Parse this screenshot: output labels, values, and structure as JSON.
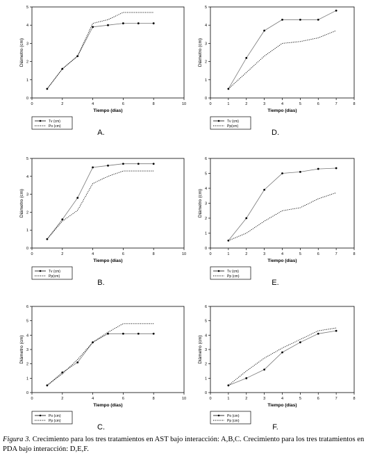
{
  "chart_data": [
    {
      "type": "line",
      "panel_label": "A.",
      "xlabel": "Tiempo (días)",
      "ylabel": "Diámetro (cm)",
      "xlim": [
        0,
        10
      ],
      "ylim": [
        0,
        5
      ],
      "xticks": [
        "0",
        "2",
        "4",
        "6",
        "8",
        "10"
      ],
      "yticks": [
        "0",
        "1",
        "2",
        "3",
        "4",
        "5"
      ],
      "legend_position": "bottom-left-outside",
      "series": [
        {
          "name": "Tv (cm)",
          "style": "solid-markers",
          "color": "#000000",
          "x": [
            1,
            2,
            3,
            4,
            5,
            6,
            7,
            8
          ],
          "y": [
            0.5,
            1.6,
            2.3,
            3.9,
            4.0,
            4.1,
            4.1,
            4.1
          ]
        },
        {
          "name": "Po (cm)",
          "style": "dotted",
          "color": "#000000",
          "x": [
            1,
            2,
            3,
            4,
            5,
            6,
            7,
            8
          ],
          "y": [
            0.5,
            1.6,
            2.3,
            4.1,
            4.3,
            4.7,
            4.7,
            4.7
          ]
        }
      ]
    },
    {
      "type": "line",
      "panel_label": "D.",
      "xlabel": "Tiempo (días)",
      "ylabel": "Diámetro (cm)",
      "xlim": [
        0,
        8
      ],
      "ylim": [
        0,
        5
      ],
      "xticks": [
        "0",
        "1",
        "2",
        "3",
        "4",
        "5",
        "6",
        "7",
        "8"
      ],
      "yticks": [
        "0",
        "1",
        "2",
        "3",
        "4",
        "5"
      ],
      "legend_position": "bottom-left-outside",
      "series": [
        {
          "name": "Tv (cm)",
          "style": "solid-markers",
          "color": "#000000",
          "x": [
            1,
            2,
            3,
            4,
            5,
            6,
            7
          ],
          "y": [
            0.5,
            2.2,
            3.7,
            4.3,
            4.3,
            4.3,
            4.8
          ]
        },
        {
          "name": "Pp(cm)",
          "style": "dotted",
          "color": "#000000",
          "x": [
            1,
            2,
            3,
            4,
            5,
            6,
            7
          ],
          "y": [
            0.5,
            1.4,
            2.3,
            3.0,
            3.1,
            3.3,
            3.7
          ]
        }
      ]
    },
    {
      "type": "line",
      "panel_label": "B.",
      "xlabel": "Tiempo (días)",
      "ylabel": "Diámetro (cm)",
      "xlim": [
        0,
        10
      ],
      "ylim": [
        0,
        5
      ],
      "xticks": [
        "0",
        "2",
        "4",
        "6",
        "8",
        "10"
      ],
      "yticks": [
        "0",
        "1",
        "2",
        "3",
        "4",
        "5"
      ],
      "legend_position": "bottom-left-outside",
      "series": [
        {
          "name": "Tv (cm)",
          "style": "solid-markers",
          "color": "#000000",
          "x": [
            1,
            2,
            3,
            4,
            5,
            6,
            7,
            8
          ],
          "y": [
            0.5,
            1.6,
            2.8,
            4.5,
            4.6,
            4.7,
            4.7,
            4.7
          ]
        },
        {
          "name": "Pp(cm)",
          "style": "dotted",
          "color": "#000000",
          "x": [
            1,
            2,
            3,
            4,
            5,
            6,
            7,
            8
          ],
          "y": [
            0.5,
            1.5,
            2.1,
            3.6,
            4.0,
            4.3,
            4.3,
            4.3
          ]
        }
      ]
    },
    {
      "type": "line",
      "panel_label": "E.",
      "xlabel": "Tiempo (días)",
      "ylabel": "Diámetro (cm)",
      "xlim": [
        0,
        8
      ],
      "ylim": [
        0,
        6
      ],
      "xticks": [
        "0",
        "1",
        "2",
        "3",
        "4",
        "5",
        "6",
        "7",
        "8"
      ],
      "yticks": [
        "0",
        "1",
        "2",
        "3",
        "4",
        "5",
        "6"
      ],
      "legend_position": "bottom-left-outside",
      "series": [
        {
          "name": "Tv (cm)",
          "style": "solid-markers",
          "color": "#000000",
          "x": [
            1,
            2,
            3,
            4,
            5,
            6,
            7
          ],
          "y": [
            0.5,
            2.0,
            3.9,
            5.0,
            5.1,
            5.3,
            5.35
          ]
        },
        {
          "name": "Pp (cm)",
          "style": "dotted",
          "color": "#000000",
          "x": [
            1,
            2,
            3,
            4,
            5,
            6,
            7
          ],
          "y": [
            0.5,
            1.0,
            1.8,
            2.5,
            2.7,
            3.3,
            3.7
          ]
        }
      ]
    },
    {
      "type": "line",
      "panel_label": "C.",
      "xlabel": "Tiempo (días)",
      "ylabel": "Diámetro (cm)",
      "xlim": [
        0,
        10
      ],
      "ylim": [
        0,
        6
      ],
      "xticks": [
        "0",
        "2",
        "4",
        "6",
        "8",
        "10"
      ],
      "yticks": [
        "0",
        "1",
        "2",
        "3",
        "4",
        "5",
        "6"
      ],
      "legend_position": "bottom-left-outside",
      "series": [
        {
          "name": "Po (cm)",
          "style": "solid-markers",
          "color": "#000000",
          "x": [
            1,
            2,
            3,
            4,
            5,
            6,
            7,
            8
          ],
          "y": [
            0.5,
            1.4,
            2.1,
            3.5,
            4.1,
            4.1,
            4.1,
            4.1
          ]
        },
        {
          "name": "Pp (cm)",
          "style": "dotted",
          "color": "#000000",
          "x": [
            1,
            2,
            3,
            4,
            5,
            6,
            7,
            8
          ],
          "y": [
            0.5,
            1.3,
            2.3,
            3.5,
            4.2,
            4.8,
            4.8,
            4.8
          ]
        }
      ]
    },
    {
      "type": "line",
      "panel_label": "F.",
      "xlabel": "Tiempo (días)",
      "ylabel": "Diámetro (cm)",
      "xlim": [
        0,
        8
      ],
      "ylim": [
        0,
        6
      ],
      "xticks": [
        "0",
        "1",
        "2",
        "3",
        "4",
        "5",
        "6",
        "7",
        "8"
      ],
      "yticks": [
        "0",
        "1",
        "2",
        "3",
        "4",
        "5",
        "6"
      ],
      "legend_position": "bottom-left-outside",
      "series": [
        {
          "name": "Po (cm)",
          "style": "solid-markers",
          "color": "#000000",
          "x": [
            1,
            2,
            3,
            4,
            5,
            6,
            7
          ],
          "y": [
            0.5,
            1.0,
            1.6,
            2.8,
            3.5,
            4.1,
            4.3
          ]
        },
        {
          "name": "Pp (cm)",
          "style": "dotted",
          "color": "#000000",
          "x": [
            1,
            2,
            3,
            4,
            5,
            6,
            7
          ],
          "y": [
            0.5,
            1.5,
            2.4,
            3.1,
            3.7,
            4.3,
            4.5
          ]
        }
      ]
    }
  ],
  "caption": {
    "label": "Figura 3.",
    "text": "Crecimiento para los tres tratamientos en AST bajo interacción: A,B,C. Crecimiento para los tres tratamientos en PDA bajo interacción: D,E,F."
  }
}
